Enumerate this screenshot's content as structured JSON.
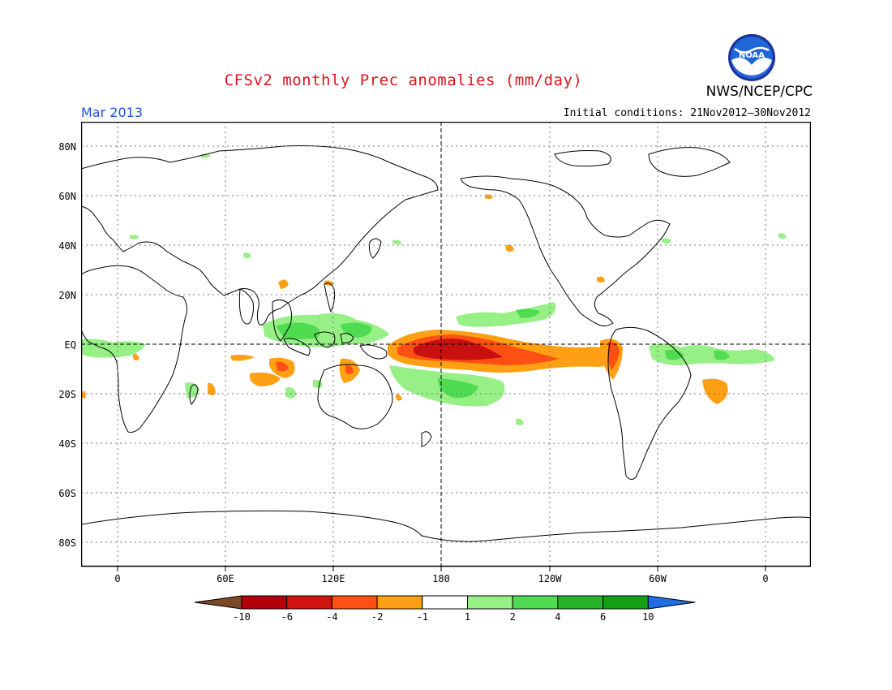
{
  "title": "CFSv2 monthly Prec anomalies (mm/day)",
  "agency": "NWS/NCEP/CPC",
  "logo_text": "NOAA",
  "valid_month": "Mar 2013",
  "initial_conditions": "Initial conditions: 21Nov2012–30Nov2012",
  "lat_labels": [
    "80N",
    "60N",
    "40N",
    "20N",
    "EQ",
    "20S",
    "40S",
    "60S",
    "80S"
  ],
  "lon_labels": [
    "0",
    "60E",
    "120E",
    "180",
    "120W",
    "60W",
    "0"
  ],
  "colorbar": {
    "labels": [
      "-10",
      "-6",
      "-4",
      "-2",
      "-1",
      "1",
      "2",
      "4",
      "6",
      "10"
    ],
    "colors": [
      "#7a4a28",
      "#b4000c",
      "#d2140f",
      "#ff5014",
      "#ffa014",
      "#ffffff",
      "#96f086",
      "#50dc50",
      "#28b428",
      "#14a014",
      "#1e6ee6"
    ]
  },
  "colors": {
    "title": "#e0141e",
    "month": "#1f4fe0",
    "dry_strong": "#c81010",
    "dry_mod": "#ff5014",
    "dry_weak": "#ffa014",
    "wet_weak": "#96f086",
    "wet_mod": "#50dc50"
  }
}
